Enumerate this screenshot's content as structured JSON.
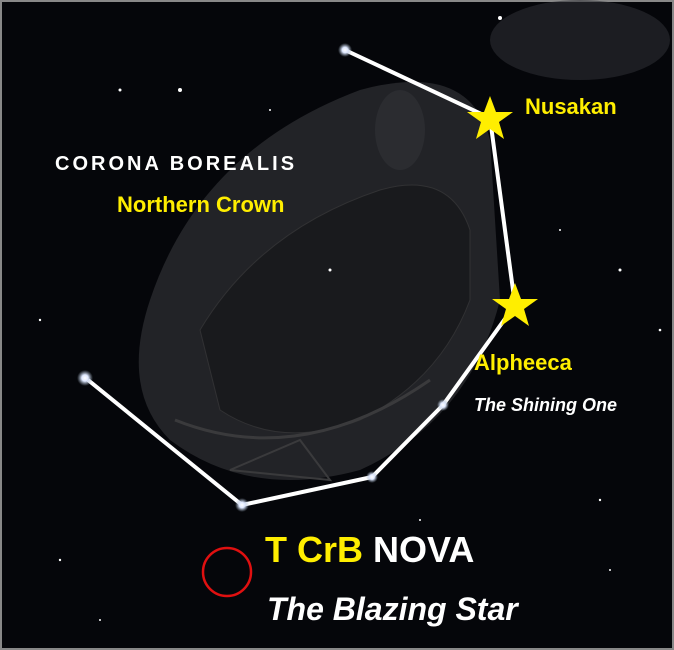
{
  "constellation": {
    "name": "CORONA BOREALIS",
    "common_name": "Northern Crown"
  },
  "stars": [
    {
      "label": "Nusakan"
    },
    {
      "label": "Alpheeca",
      "meaning": "The Shining One"
    }
  ],
  "nova": {
    "designation": "T CrB",
    "word": "NOVA",
    "nickname": "The Blazing Star"
  }
}
